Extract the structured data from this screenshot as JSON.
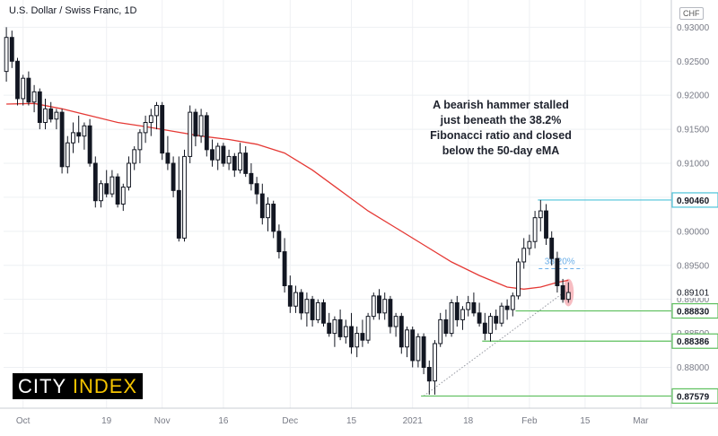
{
  "header": {
    "title": "U.S. Dollar / Swiss Franc, 1D",
    "currency_badge": "CHF"
  },
  "annotation": {
    "lines": [
      "A bearish hammer stalled",
      "just beneath the 38.2%",
      "Fibonacci ratio and closed",
      "below the 50-day eMA"
    ]
  },
  "logo": {
    "part1": "CITY ",
    "part2": "INDEX",
    "color1": "#ffffff",
    "color2": "#f5c400",
    "background": "#000000"
  },
  "chart_data": {
    "type": "candlestick",
    "ylim": [
      0.874,
      0.934
    ],
    "yticks": [
      0.88,
      0.885,
      0.89,
      0.895,
      0.9,
      0.905,
      0.91,
      0.915,
      0.92,
      0.925,
      0.93
    ],
    "ytick_labels": [
      "0.88000",
      "0.88500",
      "0.89000",
      "0.89500",
      "0.90000",
      "0.90500",
      "0.91000",
      "0.91500",
      "0.92000",
      "0.92500",
      "0.93000"
    ],
    "xticks": [
      {
        "label": "Oct",
        "index": 3
      },
      {
        "label": "19",
        "index": 18
      },
      {
        "label": "Nov",
        "index": 28
      },
      {
        "label": "16",
        "index": 39
      },
      {
        "label": "Dec",
        "index": 51
      },
      {
        "label": "15",
        "index": 62
      },
      {
        "label": "2021",
        "index": 73
      },
      {
        "label": "18",
        "index": 83
      },
      {
        "label": "Feb",
        "index": 94
      },
      {
        "label": "15",
        "index": 104
      },
      {
        "label": "Mar",
        "index": 114
      }
    ],
    "x_total_slots": 120,
    "candles": [
      [
        0.9235,
        0.93,
        0.922,
        0.9285
      ],
      [
        0.9285,
        0.9295,
        0.924,
        0.925
      ],
      [
        0.925,
        0.9255,
        0.9185,
        0.9195
      ],
      [
        0.9195,
        0.923,
        0.9185,
        0.9225
      ],
      [
        0.9225,
        0.9235,
        0.9185,
        0.919
      ],
      [
        0.919,
        0.9215,
        0.9175,
        0.9205
      ],
      [
        0.9205,
        0.921,
        0.915,
        0.916
      ],
      [
        0.916,
        0.9195,
        0.915,
        0.918
      ],
      [
        0.918,
        0.919,
        0.916,
        0.9165
      ],
      [
        0.9165,
        0.918,
        0.915,
        0.9175
      ],
      [
        0.9175,
        0.918,
        0.9085,
        0.9095
      ],
      [
        0.9095,
        0.914,
        0.9085,
        0.913
      ],
      [
        0.913,
        0.916,
        0.9115,
        0.9145
      ],
      [
        0.9145,
        0.917,
        0.913,
        0.914
      ],
      [
        0.914,
        0.916,
        0.912,
        0.9155
      ],
      [
        0.9155,
        0.9165,
        0.9095,
        0.91
      ],
      [
        0.91,
        0.911,
        0.9035,
        0.9045
      ],
      [
        0.9045,
        0.9075,
        0.9035,
        0.907
      ],
      [
        0.907,
        0.909,
        0.905,
        0.9055
      ],
      [
        0.9055,
        0.909,
        0.905,
        0.908
      ],
      [
        0.908,
        0.9085,
        0.9035,
        0.904
      ],
      [
        0.904,
        0.907,
        0.903,
        0.9065
      ],
      [
        0.9065,
        0.911,
        0.906,
        0.91
      ],
      [
        0.91,
        0.9125,
        0.909,
        0.912
      ],
      [
        0.912,
        0.915,
        0.91,
        0.9145
      ],
      [
        0.9145,
        0.917,
        0.913,
        0.916
      ],
      [
        0.916,
        0.918,
        0.914,
        0.917
      ],
      [
        0.917,
        0.919,
        0.915,
        0.9185
      ],
      [
        0.9185,
        0.919,
        0.9105,
        0.9115
      ],
      [
        0.9115,
        0.914,
        0.909,
        0.91
      ],
      [
        0.91,
        0.911,
        0.905,
        0.906
      ],
      [
        0.906,
        0.911,
        0.8985,
        0.899
      ],
      [
        0.899,
        0.912,
        0.8985,
        0.911
      ],
      [
        0.911,
        0.9185,
        0.91,
        0.9175
      ],
      [
        0.9175,
        0.918,
        0.9125,
        0.914
      ],
      [
        0.914,
        0.918,
        0.913,
        0.917
      ],
      [
        0.917,
        0.9175,
        0.911,
        0.912
      ],
      [
        0.912,
        0.9135,
        0.9095,
        0.9105
      ],
      [
        0.9105,
        0.913,
        0.909,
        0.9125
      ],
      [
        0.9125,
        0.913,
        0.9095,
        0.91
      ],
      [
        0.91,
        0.912,
        0.909,
        0.911
      ],
      [
        0.911,
        0.9115,
        0.908,
        0.909
      ],
      [
        0.909,
        0.913,
        0.9085,
        0.9115
      ],
      [
        0.9115,
        0.9125,
        0.908,
        0.9085
      ],
      [
        0.9085,
        0.91,
        0.906,
        0.907
      ],
      [
        0.907,
        0.908,
        0.904,
        0.9055
      ],
      [
        0.9055,
        0.907,
        0.901,
        0.902
      ],
      [
        0.902,
        0.905,
        0.9,
        0.904
      ],
      [
        0.904,
        0.9045,
        0.899,
        0.9
      ],
      [
        0.9,
        0.901,
        0.896,
        0.897
      ],
      [
        0.897,
        0.899,
        0.891,
        0.892
      ],
      [
        0.892,
        0.8935,
        0.888,
        0.889
      ],
      [
        0.889,
        0.892,
        0.888,
        0.891
      ],
      [
        0.891,
        0.8915,
        0.887,
        0.888
      ],
      [
        0.888,
        0.891,
        0.886,
        0.89
      ],
      [
        0.89,
        0.8905,
        0.886,
        0.887
      ],
      [
        0.887,
        0.89,
        0.8865,
        0.8895
      ],
      [
        0.8895,
        0.89,
        0.886,
        0.8865
      ],
      [
        0.8865,
        0.888,
        0.8845,
        0.885
      ],
      [
        0.885,
        0.8875,
        0.883,
        0.887
      ],
      [
        0.887,
        0.8885,
        0.884,
        0.8845
      ],
      [
        0.8845,
        0.887,
        0.8835,
        0.886
      ],
      [
        0.886,
        0.888,
        0.882,
        0.883
      ],
      [
        0.883,
        0.886,
        0.8815,
        0.885
      ],
      [
        0.885,
        0.887,
        0.883,
        0.884
      ],
      [
        0.884,
        0.888,
        0.8835,
        0.8875
      ],
      [
        0.8875,
        0.891,
        0.887,
        0.8905
      ],
      [
        0.8905,
        0.8915,
        0.887,
        0.888
      ],
      [
        0.888,
        0.891,
        0.887,
        0.89
      ],
      [
        0.89,
        0.8905,
        0.885,
        0.886
      ],
      [
        0.886,
        0.888,
        0.8845,
        0.8875
      ],
      [
        0.8875,
        0.888,
        0.882,
        0.883
      ],
      [
        0.883,
        0.886,
        0.8815,
        0.8855
      ],
      [
        0.8855,
        0.886,
        0.88,
        0.881
      ],
      [
        0.881,
        0.885,
        0.88,
        0.8845
      ],
      [
        0.8845,
        0.885,
        0.879,
        0.88
      ],
      [
        0.88,
        0.881,
        0.876,
        0.878
      ],
      [
        0.878,
        0.884,
        0.876,
        0.8835
      ],
      [
        0.8835,
        0.888,
        0.883,
        0.887
      ],
      [
        0.887,
        0.8885,
        0.8845,
        0.885
      ],
      [
        0.885,
        0.89,
        0.8845,
        0.8895
      ],
      [
        0.8895,
        0.8905,
        0.886,
        0.887
      ],
      [
        0.887,
        0.889,
        0.8855,
        0.8885
      ],
      [
        0.8885,
        0.8905,
        0.8875,
        0.8895
      ],
      [
        0.8895,
        0.891,
        0.8875,
        0.888
      ],
      [
        0.888,
        0.8895,
        0.886,
        0.8865
      ],
      [
        0.8865,
        0.888,
        0.884,
        0.885
      ],
      [
        0.885,
        0.888,
        0.8838,
        0.8875
      ],
      [
        0.8875,
        0.8885,
        0.8855,
        0.8865
      ],
      [
        0.8865,
        0.8895,
        0.886,
        0.889
      ],
      [
        0.889,
        0.89,
        0.887,
        0.8885
      ],
      [
        0.8885,
        0.891,
        0.8875,
        0.8905
      ],
      [
        0.8905,
        0.896,
        0.89,
        0.8955
      ],
      [
        0.8955,
        0.899,
        0.8945,
        0.8975
      ],
      [
        0.8975,
        0.8995,
        0.8965,
        0.8985
      ],
      [
        0.8985,
        0.903,
        0.8975,
        0.902
      ],
      [
        0.902,
        0.9046,
        0.9,
        0.903
      ],
      [
        0.903,
        0.904,
        0.898,
        0.899
      ],
      [
        0.899,
        0.9,
        0.895,
        0.896
      ],
      [
        0.896,
        0.897,
        0.891,
        0.892
      ],
      [
        0.892,
        0.893,
        0.8895,
        0.89
      ],
      [
        0.89,
        0.8925,
        0.8895,
        0.891
      ]
    ],
    "ema50": [
      [
        0,
        0.9187
      ],
      [
        5,
        0.9188
      ],
      [
        10,
        0.918
      ],
      [
        15,
        0.917
      ],
      [
        20,
        0.916
      ],
      [
        25,
        0.9154
      ],
      [
        30,
        0.9147
      ],
      [
        35,
        0.914
      ],
      [
        40,
        0.9135
      ],
      [
        45,
        0.9128
      ],
      [
        50,
        0.9115
      ],
      [
        55,
        0.909
      ],
      [
        60,
        0.906
      ],
      [
        65,
        0.903
      ],
      [
        70,
        0.9005
      ],
      [
        75,
        0.898
      ],
      [
        80,
        0.8955
      ],
      [
        85,
        0.8935
      ],
      [
        90,
        0.8918
      ],
      [
        93,
        0.8915
      ],
      [
        96,
        0.8918
      ],
      [
        99,
        0.8925
      ],
      [
        101,
        0.8928
      ]
    ],
    "ema_color": "#e53935",
    "levels": [
      {
        "label": "0.90460",
        "value": 0.9046,
        "from": 96,
        "color": "#4cc3d9"
      },
      {
        "label": "0.88830",
        "value": 0.8883,
        "from": 92,
        "color": "#5cbf5c"
      },
      {
        "label": "0.88386",
        "value": 0.88386,
        "from": 86,
        "color": "#5cbf5c"
      },
      {
        "label": "0.87579",
        "value": 0.87579,
        "from": 75,
        "color": "#5cbf5c"
      }
    ],
    "current_price": {
      "label": "0.89101",
      "value": 0.89101
    },
    "fib": {
      "label": "38.20%",
      "value": 0.8945,
      "from": 96,
      "to": 103,
      "color": "#6aaee8"
    },
    "trendline": {
      "from": [
        75,
        0.8758
      ],
      "to": [
        101,
        0.8915
      ]
    },
    "highlight_index": 101
  }
}
